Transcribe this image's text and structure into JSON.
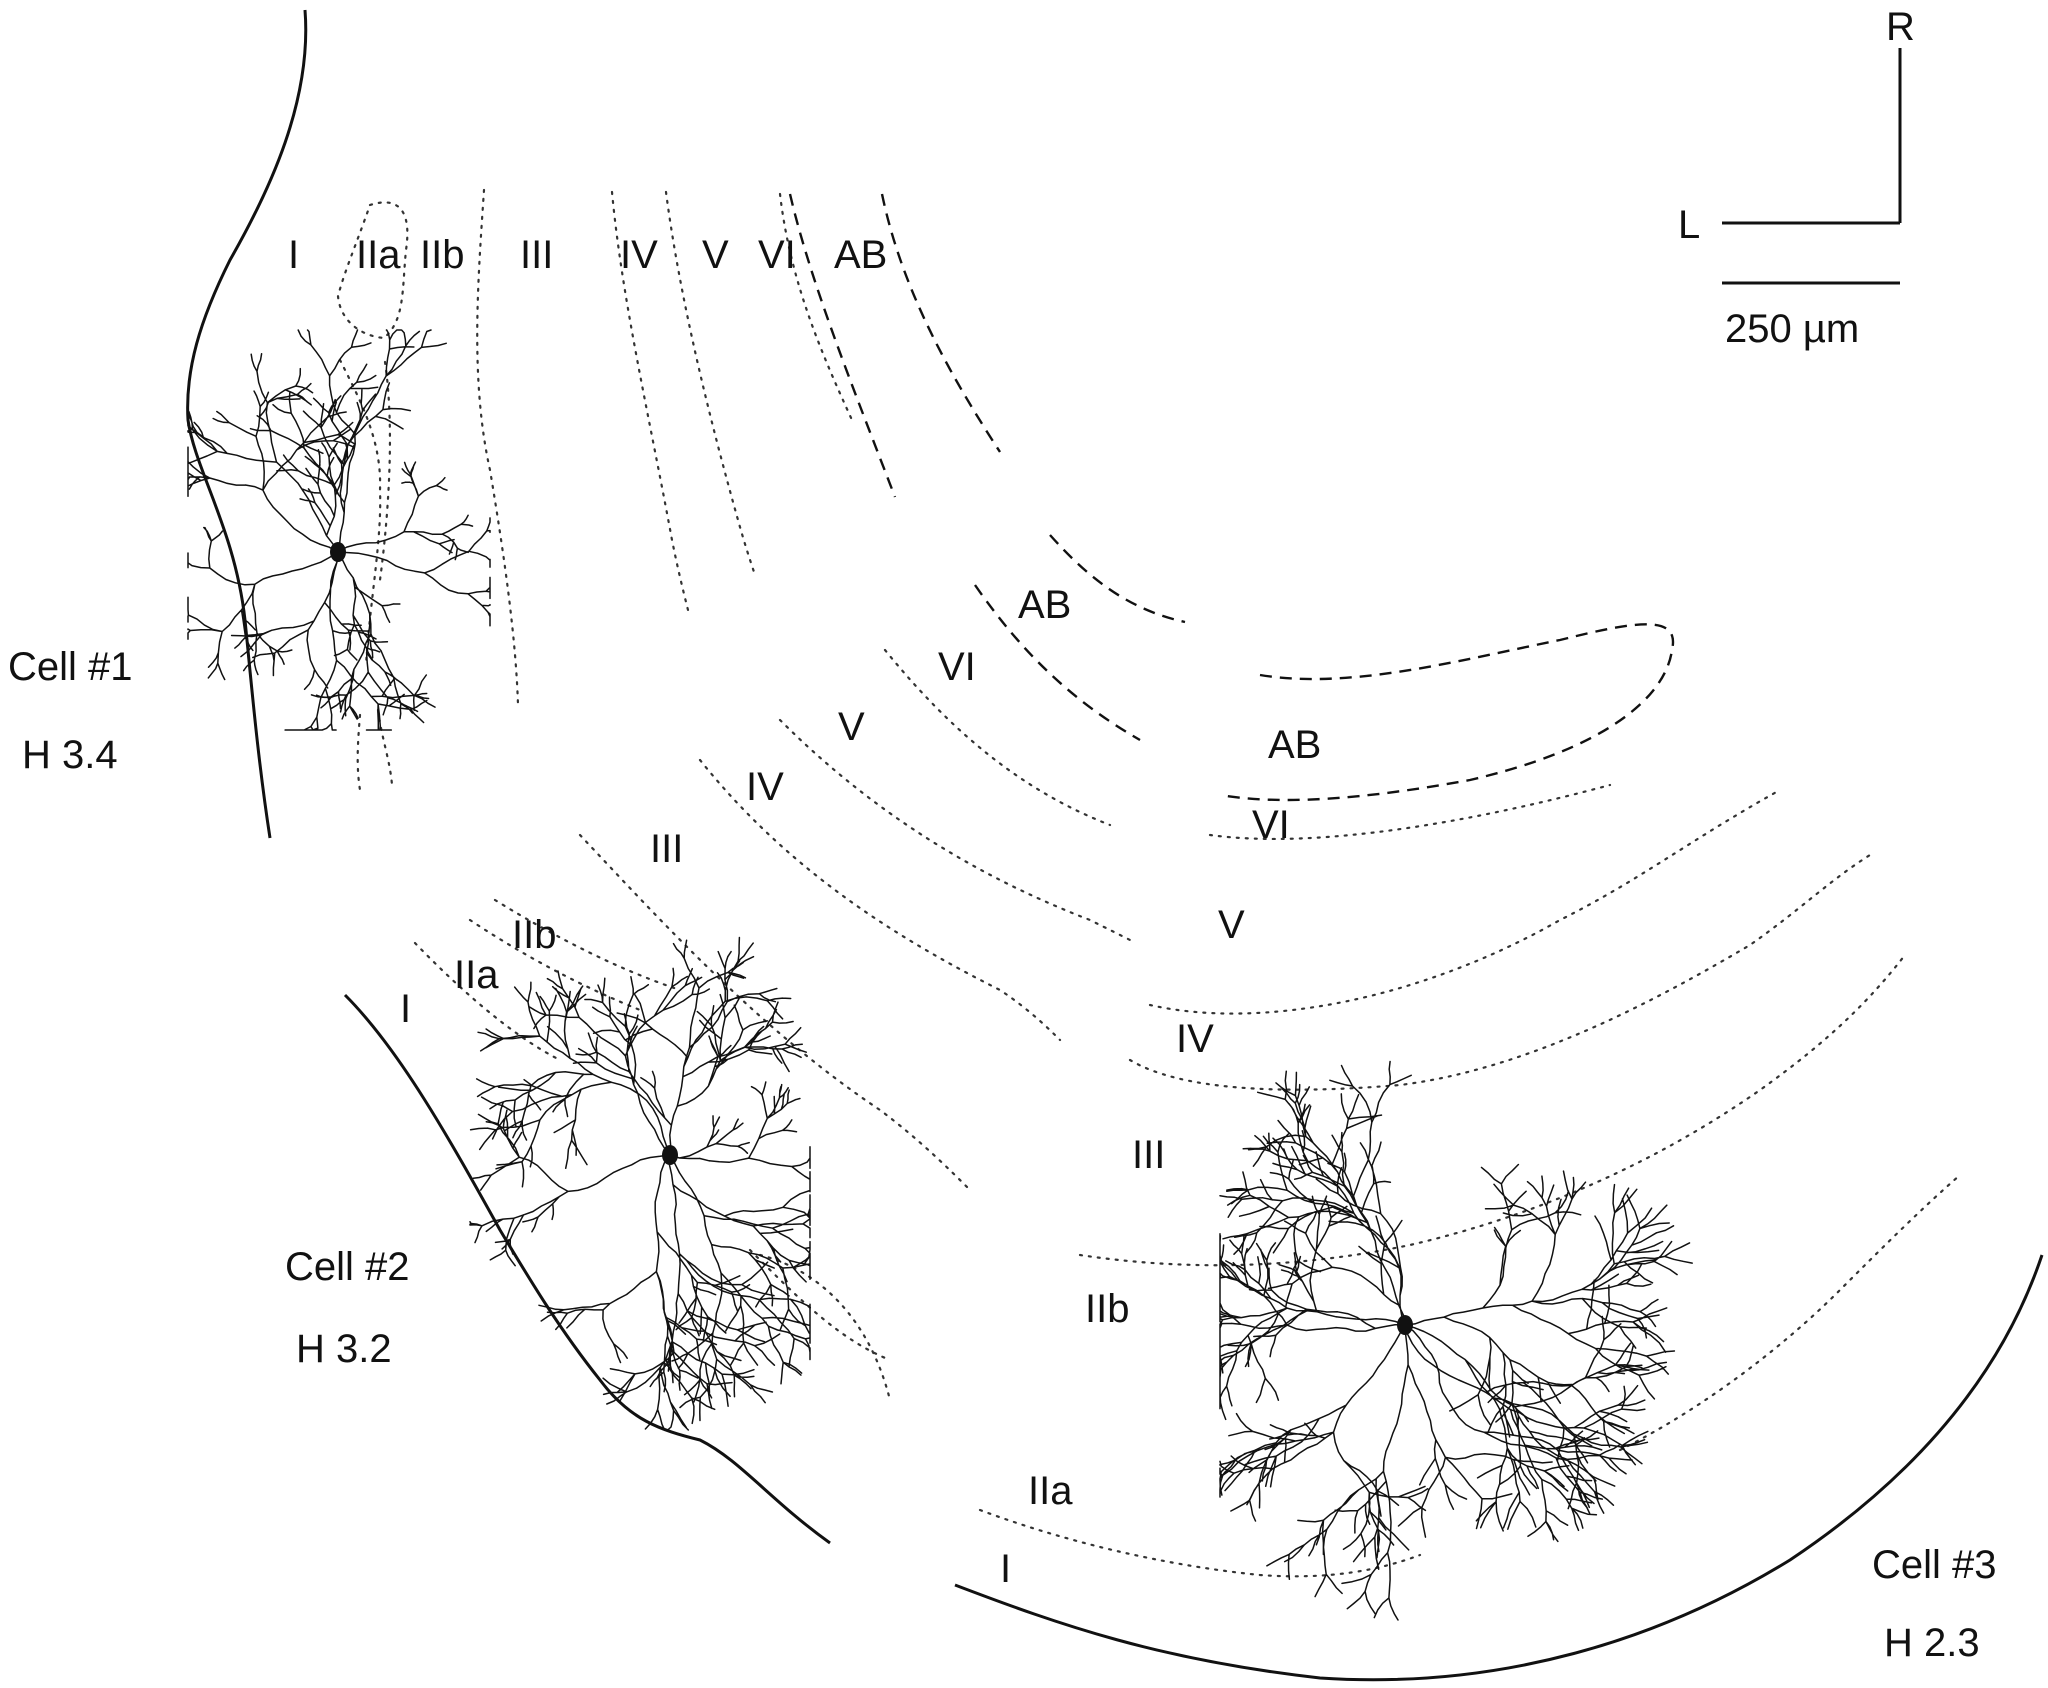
{
  "orientation": {
    "rostral": "R",
    "lateral": "L"
  },
  "scale_bar": {
    "label": "250 µm",
    "length_um": 250
  },
  "section1": {
    "layers": [
      "I",
      "IIa",
      "IIb",
      "III",
      "IV",
      "V",
      "VI",
      "AB"
    ]
  },
  "section2": {
    "layers": [
      "AB",
      "VI",
      "V",
      "IV",
      "III",
      "IIb",
      "IIa",
      "I"
    ]
  },
  "section3": {
    "layers": [
      "AB",
      "VI",
      "V",
      "IV",
      "III",
      "IIb",
      "IIa",
      "I"
    ]
  },
  "cells": [
    {
      "name": "Cell #1",
      "level": "H 3.4"
    },
    {
      "name": "Cell #2",
      "level": "H 3.2"
    },
    {
      "name": "Cell #3",
      "level": "H 2.3"
    }
  ],
  "colors": {
    "ink": "#111111",
    "background": "#ffffff"
  }
}
